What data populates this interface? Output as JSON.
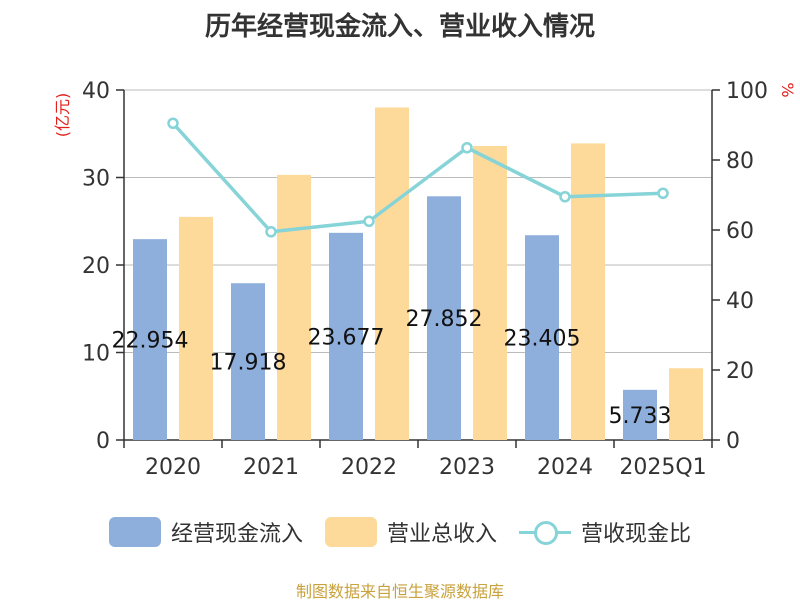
{
  "chart_data": {
    "type": "bar",
    "title": "历年经营现金流入、营业收入情况",
    "categories": [
      "2020",
      "2021",
      "2022",
      "2023",
      "2024",
      "2025Q1"
    ],
    "ylabel_left": "(亿元)",
    "ylabel_right": "%",
    "ylim_left": [
      0,
      40
    ],
    "ylim_right": [
      0,
      100
    ],
    "yticks_left": [
      "0",
      "10",
      "20",
      "30",
      "40"
    ],
    "yticks_right": [
      "0",
      "20",
      "40",
      "60",
      "80",
      "100"
    ],
    "grid": true,
    "legend_position": "bottom",
    "series": [
      {
        "name": "经营现金流入",
        "type": "bar",
        "axis": "left",
        "color": "#8eaedb",
        "values": [
          22.954,
          17.918,
          23.677,
          27.852,
          23.405,
          5.733
        ],
        "labels": [
          "22.954",
          "17.918",
          "23.677",
          "27.852",
          "23.405",
          "5.733"
        ]
      },
      {
        "name": "营业总收入",
        "type": "bar",
        "axis": "left",
        "color": "#fdd99a",
        "values": [
          25.5,
          30.3,
          38.0,
          33.6,
          33.9,
          8.2
        ]
      },
      {
        "name": "营收现金比",
        "type": "line",
        "axis": "right",
        "color": "#86d4d8",
        "values": [
          90.5,
          59.5,
          62.5,
          83.5,
          69.5,
          70.5
        ]
      }
    ]
  },
  "source_text": "制图数据来自恒生聚源数据库"
}
